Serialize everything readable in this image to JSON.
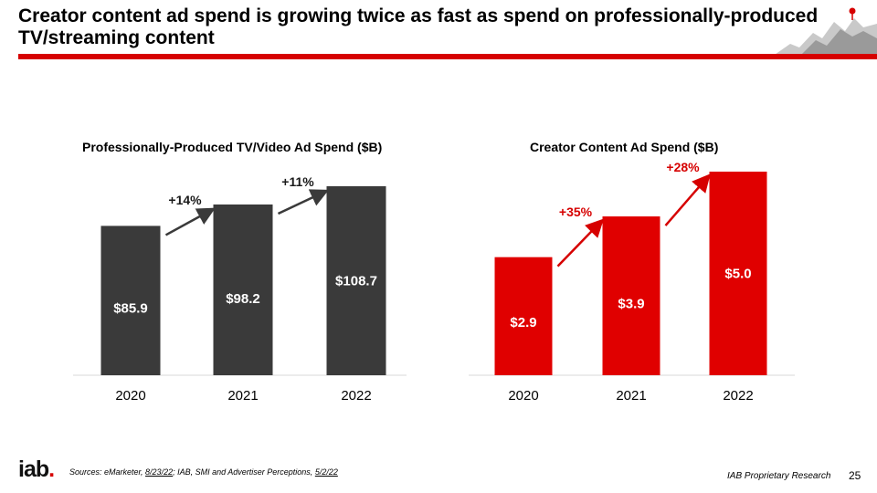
{
  "slide": {
    "title": "Creator content ad spend is growing twice as fast as spend on professionally-produced TV/streaming content",
    "accent_color": "#d60000",
    "logo_text": "iab",
    "logo_dot": ".",
    "source_prefix": "Sources: eMarketer, ",
    "source_date1": "8/23/22",
    "source_middle": "; IAB, SMI and Advertiser Perceptions, ",
    "source_date2": "5/2/22",
    "footer_label": "IAB Proprietary Research",
    "page_number": "25",
    "decoration_icon": "mountain-pin-icon"
  },
  "chart_data": [
    {
      "type": "bar",
      "title": "Professionally-Produced TV/Video Ad Spend ($B)",
      "categories": [
        "2020",
        "2021",
        "2022"
      ],
      "values": [
        85.9,
        98.2,
        108.7
      ],
      "value_labels": [
        "$85.9",
        "$98.2",
        "$108.7"
      ],
      "growth_labels": [
        "+14%",
        "+11%"
      ],
      "bar_color": "#3a3a3a",
      "arrow_color": "#3a3a3a",
      "growth_color": "#1a1a1a",
      "ylim": [
        0,
        108.7
      ],
      "xlabel": "",
      "ylabel": "",
      "grid": false
    },
    {
      "type": "bar",
      "title": "Creator Content Ad Spend ($B)",
      "categories": [
        "2020",
        "2021",
        "2022"
      ],
      "values": [
        2.9,
        3.9,
        5.0
      ],
      "value_labels": [
        "$2.9",
        "$3.9",
        "$5.0"
      ],
      "growth_labels": [
        "+35%",
        "+28%"
      ],
      "bar_color": "#e00000",
      "arrow_color": "#d60000",
      "growth_color": "#d60000",
      "ylim": [
        0,
        5.0
      ],
      "xlabel": "",
      "ylabel": "",
      "grid": false
    }
  ]
}
